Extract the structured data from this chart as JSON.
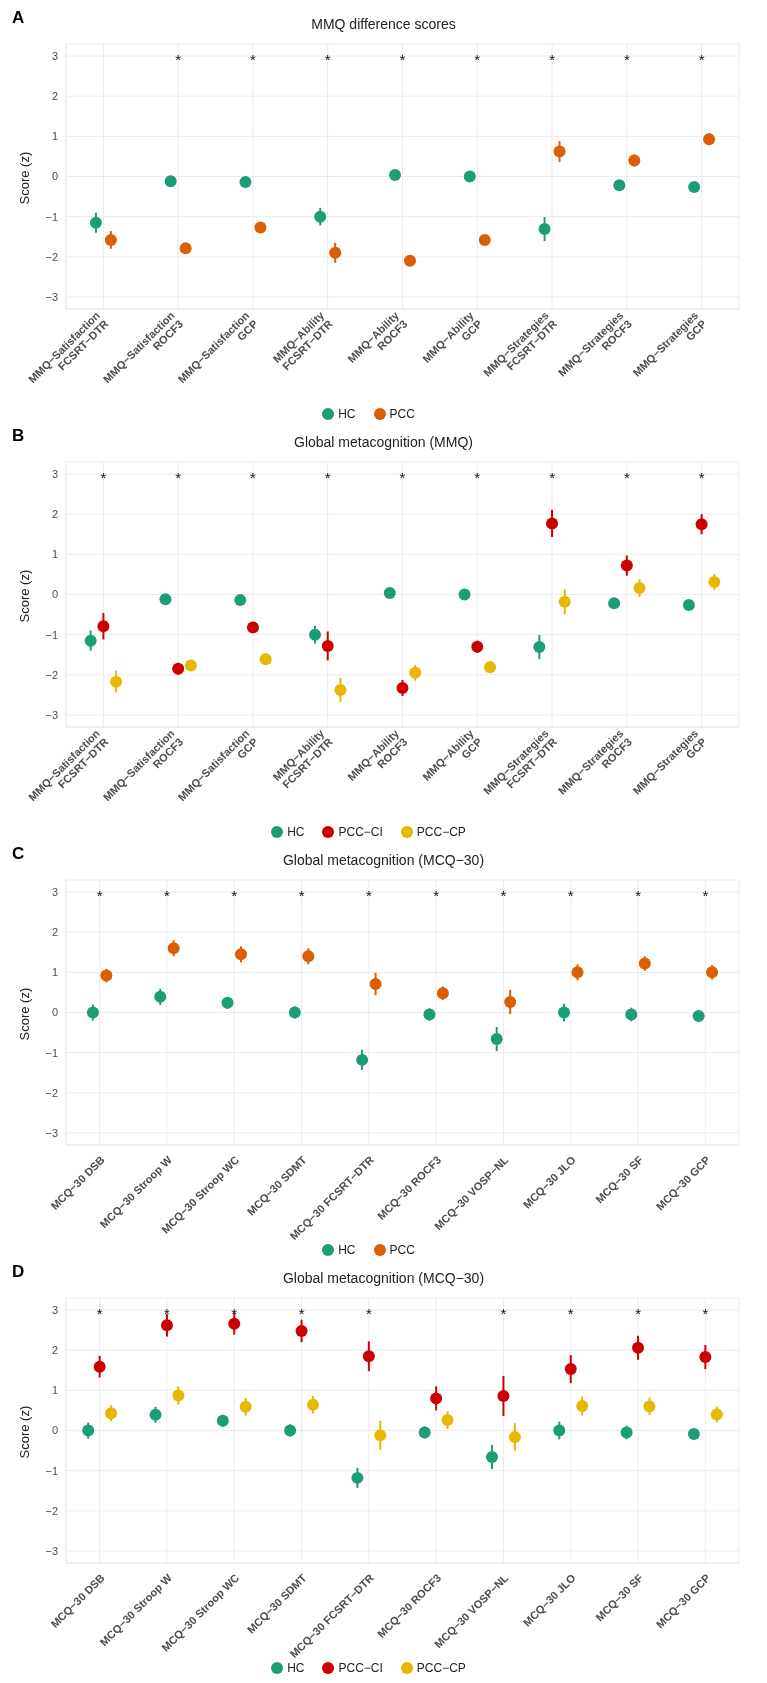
{
  "chart_data": [
    {
      "type": "scatter",
      "title": "MMQ difference scores",
      "ylabel": "Score (z)",
      "categories": [
        "MMQ−Satisfaction\nFCSRT−DTR",
        "MMQ−Satisfaction\nROCF3",
        "MMQ−Satisfaction\nGCP",
        "MMQ−Ability\nFCSRT−DTR",
        "MMQ−Ability\nROCF3",
        "MMQ−Ability\nGCP",
        "MMQ−Strategies\nFCSRT−DTR",
        "MMQ−Strategies\nROCF3",
        "MMQ−Strategies\nGCP"
      ],
      "series": [
        {
          "name": "HC",
          "color": "#1b9e77",
          "values": [
            -1.15,
            -0.12,
            -0.14,
            -1.0,
            0.04,
            0.0,
            -1.31,
            -0.22,
            -0.26
          ],
          "errors": [
            0.25,
            null,
            null,
            0.22,
            null,
            null,
            0.3,
            0.12,
            0.12
          ]
        },
        {
          "name": "PCC",
          "color": "#d95f02",
          "values": [
            -1.58,
            -1.79,
            -1.27,
            -1.9,
            -2.1,
            -1.58,
            0.62,
            0.4,
            0.93
          ],
          "errors": [
            0.22,
            null,
            null,
            0.25,
            0.12,
            null,
            0.26,
            0.15,
            0.15
          ]
        }
      ],
      "ylim": [
        -3.3,
        3.3
      ],
      "yticks": [
        -3,
        -2,
        -1,
        0,
        1,
        2,
        3
      ],
      "grid": true,
      "legend": "bottom",
      "annotations": [
        "A",
        null,
        "*",
        "*",
        "*",
        "*",
        "*",
        "*",
        "*",
        "*"
      ]
    },
    {
      "type": "scatter",
      "title": "Global metacognition (MMQ)",
      "ylabel": "Score (z)",
      "categories": [
        "MMQ−Satisfaction\nFCSRT−DTR",
        "MMQ−Satisfaction\nROCF3",
        "MMQ−Satisfaction\nGCP",
        "MMQ−Ability\nFCSRT−DTR",
        "MMQ−Ability\nROCF3",
        "MMQ−Ability\nGCP",
        "MMQ−Strategies\nFCSRT−DTR",
        "MMQ−Strategies\nROCF3",
        "MMQ−Strategies\nGCP"
      ],
      "series": [
        {
          "name": "HC",
          "color": "#1b9e77",
          "values": [
            -1.15,
            -0.12,
            -0.14,
            -1.0,
            0.04,
            0.0,
            -1.31,
            -0.22,
            -0.26
          ],
          "errors": [
            0.25,
            null,
            null,
            0.22,
            null,
            null,
            0.3,
            0.12,
            0.12
          ]
        },
        {
          "name": "PCC−CI",
          "color": "#cc0000",
          "values": [
            -0.79,
            -1.85,
            -0.82,
            -1.28,
            -2.33,
            -1.3,
            1.77,
            0.72,
            1.75
          ],
          "errors": [
            0.33,
            0.15,
            0.12,
            0.36,
            0.2,
            0.15,
            0.34,
            0.25,
            0.25
          ]
        },
        {
          "name": "PCC−CP",
          "color": "#e7b800",
          "values": [
            -2.17,
            -1.77,
            -1.61,
            -2.38,
            -1.95,
            -1.81,
            -0.18,
            0.16,
            0.31
          ],
          "errors": [
            0.27,
            null,
            null,
            0.3,
            0.2,
            0.15,
            0.31,
            0.22,
            0.2
          ]
        }
      ],
      "ylim": [
        -3.3,
        3.3
      ],
      "yticks": [
        -3,
        -2,
        -1,
        0,
        1,
        2,
        3
      ],
      "grid": true,
      "legend": "bottom",
      "annotations": [
        "B",
        "*",
        "*",
        "*",
        "*",
        "*",
        "*",
        "*",
        "*",
        "*"
      ]
    },
    {
      "type": "scatter",
      "title": "Global metacognition (MCQ−30)",
      "ylabel": "Score (z)",
      "categories": [
        "MCQ−30 DSB",
        "MCQ−30 Stroop W",
        "MCQ−30 Stroop WC",
        "MCQ−30 SDMT",
        "MCQ−30 FCSRT−DTR",
        "MCQ−30 ROCF3",
        "MCQ−30 VOSP−NL",
        "MCQ−30 JLO",
        "MCQ−30 SF",
        "MCQ−30 GCP"
      ],
      "series": [
        {
          "name": "HC",
          "color": "#1b9e77",
          "values": [
            0.0,
            0.39,
            0.24,
            0.0,
            -1.18,
            -0.05,
            -0.66,
            0.0,
            -0.05,
            -0.09
          ],
          "errors": [
            0.2,
            0.2,
            0.15,
            0.15,
            0.25,
            0.15,
            0.3,
            0.22,
            0.17,
            null
          ]
        },
        {
          "name": "PCC",
          "color": "#d95f02",
          "values": [
            0.92,
            1.6,
            1.45,
            1.4,
            0.71,
            0.48,
            0.26,
            1.0,
            1.22,
            1.0
          ],
          "errors": [
            0.17,
            0.2,
            0.2,
            0.2,
            0.28,
            0.17,
            0.3,
            0.2,
            0.18,
            0.18
          ]
        }
      ],
      "ylim": [
        -3.3,
        3.3
      ],
      "yticks": [
        -3,
        -2,
        -1,
        0,
        1,
        2,
        3
      ],
      "grid": true,
      "legend": "bottom",
      "annotations": [
        "C",
        "*",
        "*",
        "*",
        "*",
        "*",
        "*",
        "*",
        "*",
        "*",
        "*"
      ]
    },
    {
      "type": "scatter",
      "title": "Global metacognition (MCQ−30)",
      "ylabel": "Score (z)",
      "categories": [
        "MCQ−30 DSB",
        "MCQ−30 Stroop W",
        "MCQ−30 Stroop WC",
        "MCQ−30 SDMT",
        "MCQ−30 FCSRT−DTR",
        "MCQ−30 ROCF3",
        "MCQ−30 VOSP−NL",
        "MCQ−30 JLO",
        "MCQ−30 SF",
        "MCQ−30 GCP"
      ],
      "series": [
        {
          "name": "HC",
          "color": "#1b9e77",
          "values": [
            0.0,
            0.39,
            0.24,
            0.0,
            -1.18,
            -0.05,
            -0.66,
            0.0,
            -0.05,
            -0.09
          ],
          "errors": [
            0.2,
            0.2,
            0.15,
            0.15,
            0.25,
            0.15,
            0.3,
            0.22,
            0.17,
            null
          ]
        },
        {
          "name": "PCC−CI",
          "color": "#cc0000",
          "values": [
            1.59,
            2.62,
            2.66,
            2.48,
            1.85,
            0.8,
            0.86,
            1.53,
            2.06,
            1.83
          ],
          "errors": [
            0.27,
            0.28,
            0.27,
            0.28,
            0.37,
            0.3,
            0.5,
            0.35,
            0.3,
            0.3
          ]
        },
        {
          "name": "PCC−CP",
          "color": "#e7b800",
          "values": [
            0.43,
            0.87,
            0.59,
            0.64,
            -0.12,
            0.26,
            -0.16,
            0.61,
            0.6,
            0.4
          ],
          "errors": [
            0.2,
            0.23,
            0.22,
            0.22,
            0.36,
            0.22,
            0.34,
            0.24,
            0.22,
            0.2
          ]
        }
      ],
      "ylim": [
        -3.3,
        3.3
      ],
      "yticks": [
        -3,
        -2,
        -1,
        0,
        1,
        2,
        3
      ],
      "grid": true,
      "legend": "bottom",
      "annotations": [
        "D",
        "*",
        "*",
        "*",
        "*",
        "*",
        null,
        "*",
        "*",
        "*",
        "*"
      ]
    }
  ]
}
